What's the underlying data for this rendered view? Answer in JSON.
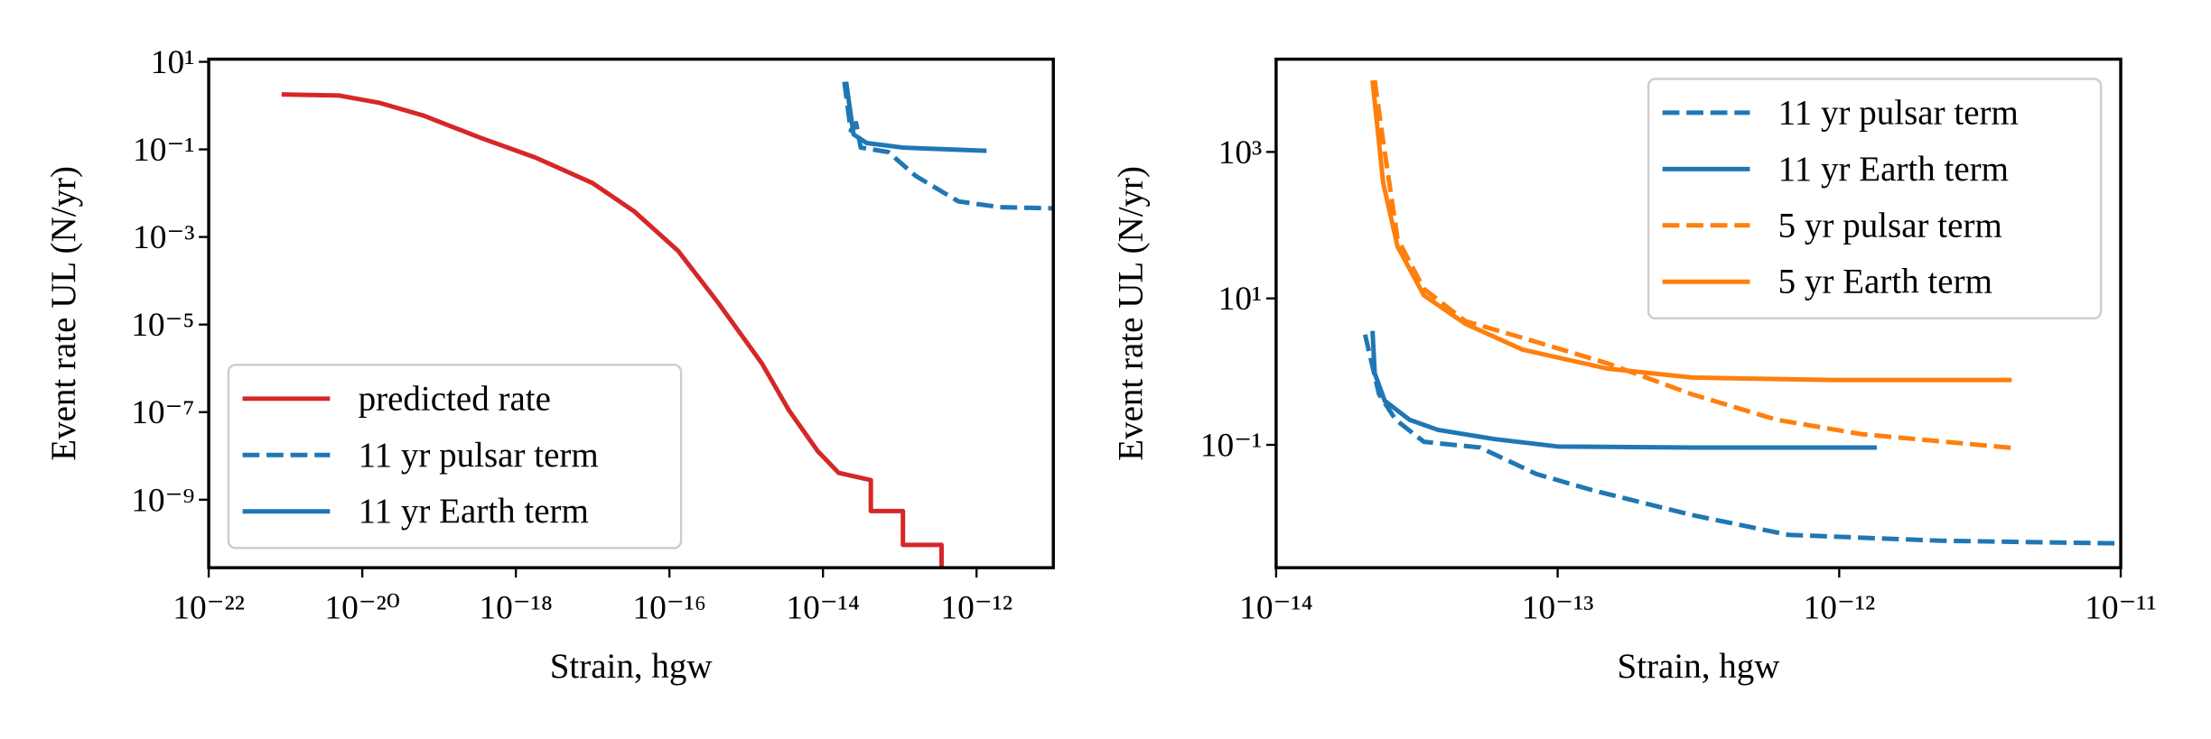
{
  "chart_data": [
    {
      "type": "line",
      "xscale": "log",
      "yscale": "log",
      "legend": "lower left",
      "xlabel": "Strain, hgw",
      "ylabel": "Event rate UL (N/yr)",
      "xlim": [
        1e-22,
        1e-11
      ],
      "ylim": [
        2.8e-11,
        11.5
      ],
      "xticks": [
        {
          "value": 1e-22,
          "label": "10⁻²²"
        },
        {
          "value": 1e-20,
          "label": "10⁻²⁰"
        },
        {
          "value": 1e-18,
          "label": "10⁻¹⁸"
        },
        {
          "value": 1e-16,
          "label": "10⁻¹⁶"
        },
        {
          "value": 1e-14,
          "label": "10⁻¹⁴"
        },
        {
          "value": 1e-12,
          "label": "10⁻¹²"
        }
      ],
      "yticks": [
        {
          "value": 10,
          "label": "10¹"
        },
        {
          "value": 0.1,
          "label": "10⁻¹"
        },
        {
          "value": 0.001,
          "label": "10⁻³"
        },
        {
          "value": 1e-05,
          "label": "10⁻⁵"
        },
        {
          "value": 1e-07,
          "label": "10⁻⁷"
        },
        {
          "value": 1e-09,
          "label": "10⁻⁹"
        }
      ],
      "series": [
        {
          "name": "predicted rate",
          "color": "#d62728",
          "dashed": false,
          "x": [
            8.9e-22,
            5e-21,
            1.7e-20,
            6.3e-20,
            3.3e-19,
            1.8e-18,
            1e-17,
            3.5e-17,
            1.3e-16,
            4.4e-16,
            1.6e-15,
            3.6e-15,
            8.5e-15,
            1.6e-14,
            4.2e-14,
            4.2e-14,
            1.1e-13,
            1.1e-13,
            3.5e-13,
            3.5e-13
          ],
          "values": [
            1.8,
            1.7,
            1.15,
            0.59,
            0.19,
            0.065,
            0.017,
            0.0038,
            0.00048,
            3e-05,
            1.3e-06,
            1.1e-07,
            1.3e-08,
            4.1e-09,
            2.8e-09,
            5.5e-10,
            5.5e-10,
            9.3e-11,
            9.3e-11,
            3e-11
          ]
        },
        {
          "name": "11 yr pulsar term",
          "color": "#1f77b4",
          "dashed": true,
          "x": [
            1.9e-14,
            2.3e-14,
            2.7e-14,
            3.1e-14,
            7.1e-14,
            1.6e-13,
            5.8e-13,
            2e-12,
            1e-11
          ],
          "values": [
            3.5,
            0.27,
            0.4,
            0.11,
            0.087,
            0.025,
            0.0065,
            0.0048,
            0.0045
          ]
        },
        {
          "name": "11 yr Earth term",
          "color": "#1f77b4",
          "dashed": false,
          "x": [
            2e-14,
            2.5e-14,
            3.7e-14,
            1.1e-13,
            1.35e-12
          ],
          "values": [
            3.5,
            0.22,
            0.14,
            0.11,
            0.093
          ]
        }
      ]
    },
    {
      "type": "line",
      "xscale": "log",
      "yscale": "log",
      "legend": "upper right",
      "xlabel": "Strain, hgw",
      "ylabel": "Event rate UL (N/yr)",
      "xlim": [
        1e-14,
        1e-11
      ],
      "ylim": [
        0.0021,
        18500
      ],
      "xticks": [
        {
          "value": 1e-14,
          "label": "10⁻¹⁴"
        },
        {
          "value": 1e-13,
          "label": "10⁻¹³"
        },
        {
          "value": 1e-12,
          "label": "10⁻¹²"
        },
        {
          "value": 1e-11,
          "label": "10⁻¹¹"
        }
      ],
      "yticks": [
        {
          "value": 1000,
          "label": "10³"
        },
        {
          "value": 10,
          "label": "10¹"
        },
        {
          "value": 0.1,
          "label": "10⁻¹"
        }
      ],
      "series": [
        {
          "name": "11 yr pulsar term",
          "color": "#1f77b4",
          "dashed": true,
          "x": [
            2.07e-14,
            2.32e-14,
            2.66e-14,
            3.35e-14,
            5.3e-14,
            8.4e-14,
            1.33e-13,
            3e-13,
            6.6e-13,
            2.3e-12,
            1e-11
          ],
          "values": [
            3.2,
            0.49,
            0.22,
            0.11,
            0.092,
            0.04,
            0.024,
            0.011,
            0.0059,
            0.0049,
            0.0045
          ]
        },
        {
          "name": "11 yr Earth term",
          "color": "#1f77b4",
          "dashed": false,
          "x": [
            2.2e-14,
            2.24e-14,
            2.43e-14,
            2.98e-14,
            3.76e-14,
            5.95e-14,
            1e-13,
            3e-13,
            1.36e-12
          ],
          "values": [
            3.6,
            0.95,
            0.4,
            0.22,
            0.16,
            0.12,
            0.095,
            0.092,
            0.092
          ]
        },
        {
          "name": "5 yr pulsar term",
          "color": "#ff7f0e",
          "dashed": true,
          "x": [
            2.24e-14,
            2.4e-14,
            2.7e-14,
            3.35e-14,
            4.7e-14,
            7.5e-14,
            1.5e-13,
            3e-13,
            6e-13,
            1.2e-12,
            4.1e-12
          ],
          "values": [
            9500,
            1400,
            65,
            13.5,
            4.9,
            2.9,
            1.3,
            0.49,
            0.22,
            0.14,
            0.091
          ]
        },
        {
          "name": "5 yr Earth term",
          "color": "#ff7f0e",
          "dashed": false,
          "x": [
            2.2e-14,
            2.4e-14,
            2.7e-14,
            3.35e-14,
            4.7e-14,
            7.5e-14,
            1.5e-13,
            3e-13,
            9.4e-13,
            4.1e-12
          ],
          "values": [
            9500,
            380,
            51,
            11,
            4.5,
            2.0,
            1.1,
            0.83,
            0.77,
            0.77
          ]
        }
      ]
    }
  ]
}
